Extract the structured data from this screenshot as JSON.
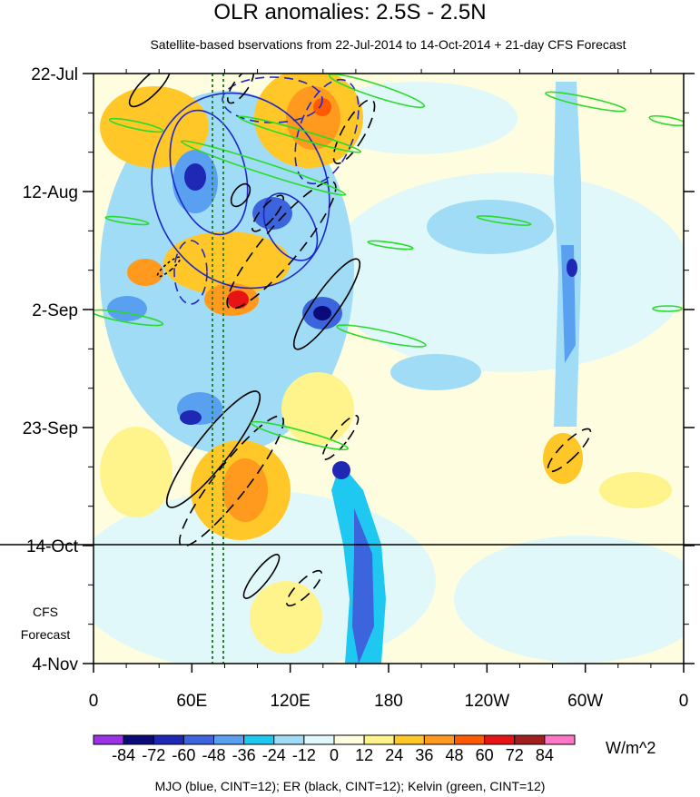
{
  "chart_data": {
    "type": "heatmap",
    "title": "OLR anomalies: 2.5S - 2.5N",
    "subtitle": "Satellite-based bservations from 22-Jul-2014 to 14-Oct-2014 + 21-day CFS Forecast",
    "x_tick_labels": [
      "0",
      "60E",
      "120E",
      "180",
      "120W",
      "60W",
      "0"
    ],
    "x_range_deg_east": [
      0,
      360
    ],
    "y_tick_labels": [
      "22-Jul",
      "12-Aug",
      "2-Sep",
      "23-Sep",
      "14-Oct",
      "4-Nov"
    ],
    "y_range": [
      "22-Jul-2014",
      "4-Nov-2014"
    ],
    "forecast_start": "14-Oct",
    "forecast_label": [
      "CFS",
      "Forecast"
    ],
    "colorbar": {
      "labels": [
        "-84",
        "-72",
        "-60",
        "-48",
        "-36",
        "-24",
        "-12",
        "0",
        "12",
        "24",
        "36",
        "48",
        "60",
        "72",
        "84"
      ],
      "colors": [
        "#9a32e8",
        "#0a0a78",
        "#1e28b4",
        "#3c64dc",
        "#5aa0f0",
        "#1ec8f0",
        "#a0dcf5",
        "#e0f8fa",
        "#fffde0",
        "#fff38c",
        "#ffc828",
        "#ff9a1e",
        "#ff5a00",
        "#e61414",
        "#a01e1e",
        "#ff78c8"
      ],
      "units": "W/m^2"
    },
    "overlay_contours": "MJO (blue, CINT=12); ER (black, CINT=12); Kelvin (green, CINT=12)"
  }
}
